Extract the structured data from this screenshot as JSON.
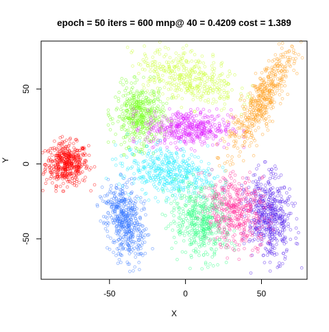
{
  "chart_data": {
    "type": "scatter",
    "title": "epoch = 50 iters = 600 mnp@ 40 = 0.4209 cost = 1.389",
    "xlabel": "X",
    "ylabel": "Y",
    "xlim": [
      -95,
      80
    ],
    "ylim": [
      -77,
      82
    ],
    "x_ticks": [
      -50,
      0,
      50
    ],
    "y_ticks": [
      -50,
      0,
      50
    ],
    "x_tick_labels": [
      "-50",
      "0",
      "50"
    ],
    "y_tick_labels": [
      "-50",
      "0",
      "50"
    ],
    "grid": false,
    "legend": "none",
    "marker": "open circle",
    "point_opacity": 0.5,
    "series": [
      {
        "color": "#ff0000",
        "center": [
          -78,
          0
        ],
        "spread": [
          7,
          7
        ],
        "count": 450
      },
      {
        "color": "#3b7bff",
        "center": [
          -40,
          -38
        ],
        "spread": [
          6,
          13
        ],
        "count": 500,
        "tilt": 0.2
      },
      {
        "color": "#77ff22",
        "center": [
          -30,
          32
        ],
        "spread": [
          8,
          10
        ],
        "count": 450
      },
      {
        "color": "#e020ff",
        "center": [
          2,
          24
        ],
        "spread": [
          14,
          6
        ],
        "count": 450
      },
      {
        "color": "#22eeff",
        "center": [
          -12,
          -5
        ],
        "spread": [
          15,
          8
        ],
        "count": 450,
        "tilt": -0.15
      },
      {
        "color": "#ccff33",
        "center": [
          2,
          58
        ],
        "spread": [
          17,
          8
        ],
        "count": 400,
        "tilt": -0.3
      },
      {
        "color": "#ff9f20",
        "center": [
          50,
          42
        ],
        "spread": [
          5,
          20
        ],
        "count": 500,
        "tilt": -0.5
      },
      {
        "color": "#5522ee",
        "center": [
          55,
          -35
        ],
        "spread": [
          7,
          14
        ],
        "count": 500,
        "tilt": 0.1
      },
      {
        "color": "#ff2b9a",
        "center": [
          32,
          -32
        ],
        "spread": [
          10,
          12
        ],
        "count": 450,
        "tilt": 0.3
      },
      {
        "color": "#33ff88",
        "center": [
          10,
          -38
        ],
        "spread": [
          9,
          12
        ],
        "count": 450,
        "tilt": 0.25
      }
    ]
  }
}
